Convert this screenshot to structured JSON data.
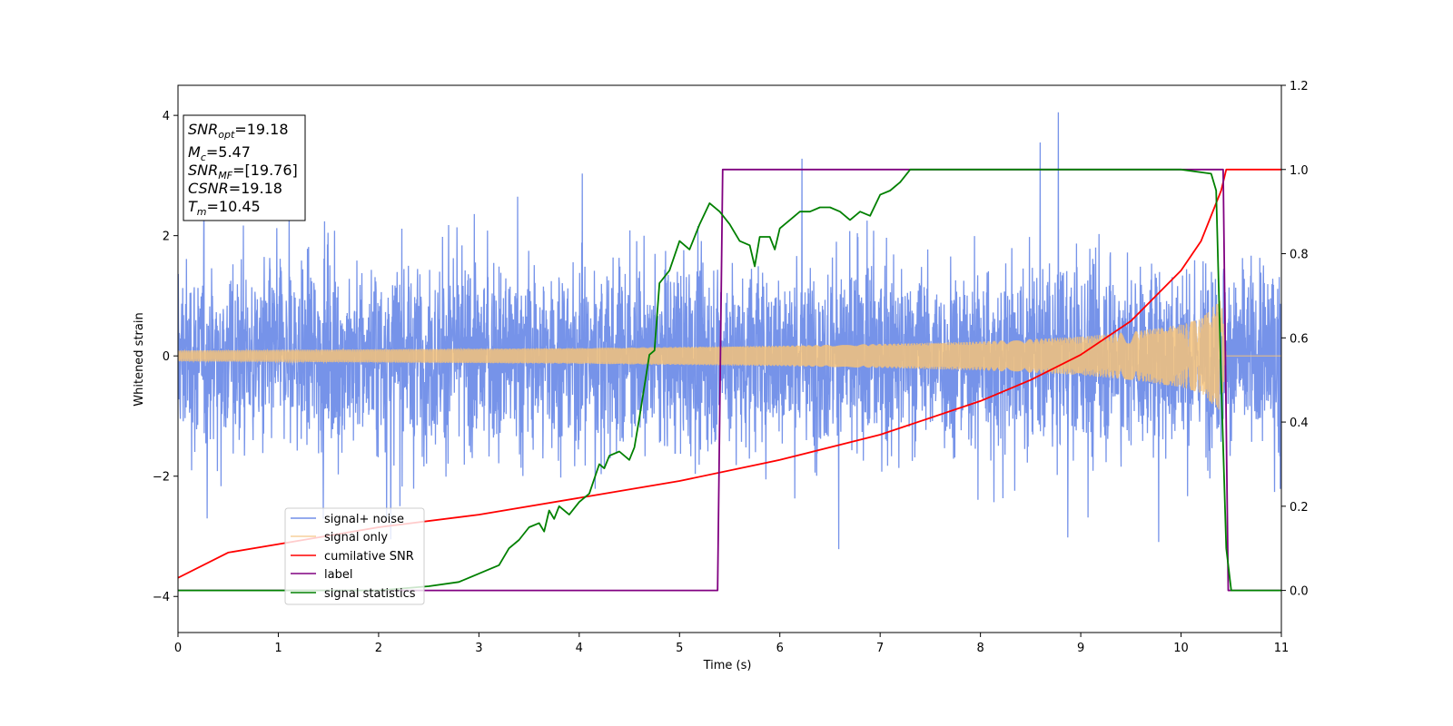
{
  "chart_data": {
    "type": "line",
    "xlabel": "Time (s)",
    "ylabel": "Whitened strain",
    "xlim": [
      0,
      11
    ],
    "ylim_left": [
      -4.6,
      4.5
    ],
    "ylim_right": [
      -0.1,
      1.2
    ],
    "x_ticks": [
      "0",
      "1",
      "2",
      "3",
      "4",
      "5",
      "6",
      "7",
      "8",
      "9",
      "10",
      "11"
    ],
    "y_left_ticks": [
      "4",
      "2",
      "0",
      "−2",
      "−4"
    ],
    "y_left_tick_values": [
      4,
      2,
      0,
      -2,
      -4
    ],
    "y_right_ticks": [
      "1.2",
      "1.0",
      "0.8",
      "0.6",
      "0.4",
      "0.2",
      "0.0"
    ],
    "y_right_tick_values": [
      1.2,
      1.0,
      0.8,
      0.6,
      0.4,
      0.2,
      0.0
    ],
    "grid": false,
    "legend_position": "lower-left",
    "info_box": {
      "snr_opt": {
        "main": "SNR",
        "sub": "opt",
        "value": "=19.18"
      },
      "mc": {
        "main": "M",
        "sub": "c",
        "value": "=5.47"
      },
      "snr_mf": {
        "main": "SNR",
        "sub": "MF",
        "value": "=[19.76]"
      },
      "csnr": {
        "main": "CSNR",
        "value": "=19.18"
      },
      "tm": {
        "main": "T",
        "sub": "m",
        "value": "=10.45"
      }
    },
    "series": [
      {
        "name": "signal+ noise",
        "axis": "left",
        "color": "#4169e1",
        "kind": "noise",
        "description_values": {
          "core_std": 0.75,
          "peak_max": 4.05,
          "peak_min": -3.8
        }
      },
      {
        "name": "signal only",
        "axis": "left",
        "color": "#f4c27a",
        "kind": "chirp",
        "envelope": {
          "x": [
            0,
            1,
            2,
            3,
            4,
            5,
            6,
            7,
            8,
            9,
            9.5,
            10,
            10.2,
            10.4,
            10.45,
            11
          ],
          "y": [
            0.09,
            0.1,
            0.11,
            0.12,
            0.13,
            0.15,
            0.17,
            0.2,
            0.24,
            0.32,
            0.4,
            0.52,
            0.62,
            0.95,
            0.0,
            0.0
          ]
        }
      },
      {
        "name": "cumilative SNR",
        "axis": "right",
        "color": "#ff0000",
        "x": [
          0,
          0.5,
          1,
          2,
          3,
          4,
          5,
          6,
          7,
          8,
          8.5,
          9,
          9.5,
          10,
          10.2,
          10.4,
          10.45,
          11
        ],
        "y": [
          0.03,
          0.09,
          0.11,
          0.15,
          0.18,
          0.22,
          0.26,
          0.31,
          0.37,
          0.45,
          0.5,
          0.56,
          0.64,
          0.76,
          0.83,
          0.95,
          1.0,
          1.0
        ]
      },
      {
        "name": "label",
        "axis": "right",
        "color": "#800080",
        "x": [
          0,
          5.38,
          5.43,
          10.42,
          10.47,
          11
        ],
        "y": [
          0.0,
          0.0,
          1.0,
          1.0,
          0.0,
          0.0
        ]
      },
      {
        "name": "signal statistics",
        "axis": "right",
        "color": "#008000",
        "x": [
          0,
          1,
          2,
          2.5,
          2.8,
          3.0,
          3.1,
          3.2,
          3.3,
          3.4,
          3.5,
          3.6,
          3.65,
          3.7,
          3.75,
          3.8,
          3.9,
          4.0,
          4.1,
          4.2,
          4.25,
          4.3,
          4.4,
          4.5,
          4.55,
          4.6,
          4.7,
          4.75,
          4.8,
          4.9,
          5.0,
          5.1,
          5.2,
          5.3,
          5.4,
          5.5,
          5.6,
          5.7,
          5.75,
          5.8,
          5.9,
          5.95,
          6.0,
          6.1,
          6.2,
          6.3,
          6.4,
          6.5,
          6.6,
          6.7,
          6.8,
          6.9,
          7.0,
          7.1,
          7.2,
          7.3,
          7.5,
          8.0,
          9.0,
          10.0,
          10.3,
          10.35,
          10.4,
          10.45,
          10.5,
          10.6,
          11.0
        ],
        "y": [
          0.0,
          0.0,
          0.0,
          0.01,
          0.02,
          0.04,
          0.05,
          0.06,
          0.1,
          0.12,
          0.15,
          0.16,
          0.14,
          0.19,
          0.17,
          0.2,
          0.18,
          0.21,
          0.23,
          0.3,
          0.29,
          0.32,
          0.33,
          0.31,
          0.34,
          0.41,
          0.56,
          0.57,
          0.73,
          0.76,
          0.83,
          0.81,
          0.87,
          0.92,
          0.9,
          0.87,
          0.83,
          0.82,
          0.77,
          0.84,
          0.84,
          0.81,
          0.86,
          0.88,
          0.9,
          0.9,
          0.91,
          0.91,
          0.9,
          0.88,
          0.9,
          0.89,
          0.94,
          0.95,
          0.97,
          1.0,
          1.0,
          1.0,
          1.0,
          1.0,
          0.99,
          0.95,
          0.5,
          0.1,
          0.0,
          0.0,
          0.0
        ]
      }
    ]
  }
}
